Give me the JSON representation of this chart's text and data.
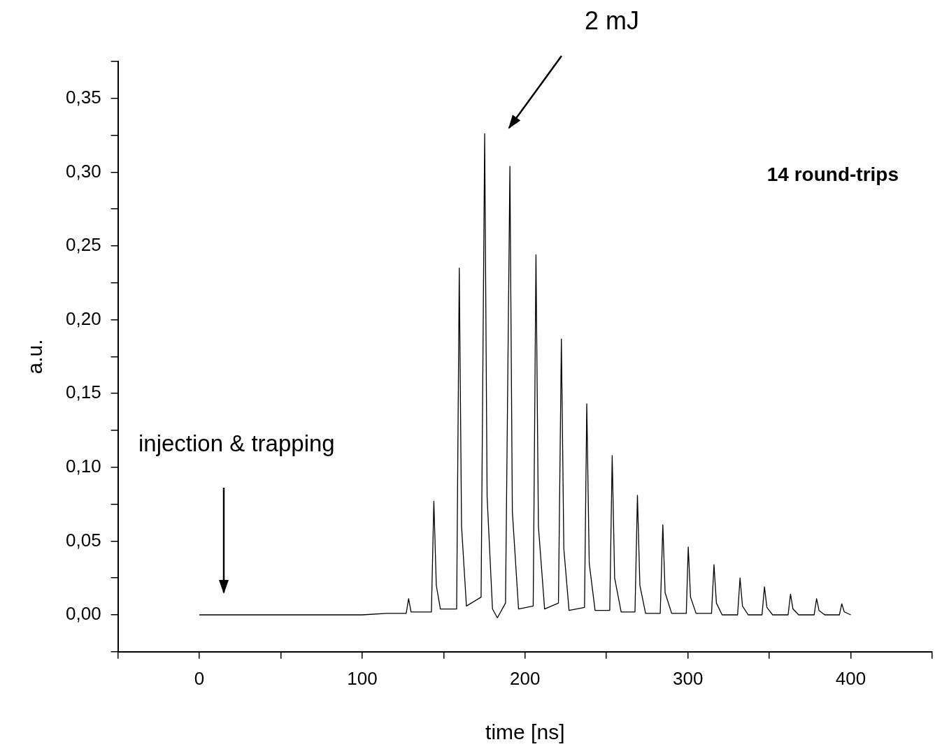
{
  "chart_data": {
    "type": "line",
    "xlabel": "time [ns]",
    "ylabel": "a.u.",
    "xlim": [
      -50,
      450
    ],
    "ylim": [
      -0.025,
      0.375
    ],
    "xticks": [
      {
        "value": -50,
        "label": null
      },
      0,
      {
        "value": 50,
        "label": null
      },
      100,
      {
        "value": 150,
        "label": null
      },
      200,
      {
        "value": 250,
        "label": null
      },
      300,
      {
        "value": 350,
        "label": null
      },
      400,
      {
        "value": 450,
        "label": null
      }
    ],
    "yticks": [
      {
        "value": -0.025,
        "label": null
      },
      {
        "value": 0,
        "label": "0,00"
      },
      {
        "value": 0.025,
        "label": null
      },
      {
        "value": 0.05,
        "label": "0,05"
      },
      {
        "value": 0.075,
        "label": null
      },
      {
        "value": 0.1,
        "label": "0,10"
      },
      {
        "value": 0.125,
        "label": null
      },
      {
        "value": 0.15,
        "label": "0,15"
      },
      {
        "value": 0.175,
        "label": null
      },
      {
        "value": 0.2,
        "label": "0,20"
      },
      {
        "value": 0.225,
        "label": null
      },
      {
        "value": 0.25,
        "label": "0,25"
      },
      {
        "value": 0.275,
        "label": null
      },
      {
        "value": 0.3,
        "label": "0,30"
      },
      {
        "value": 0.325,
        "label": null
      },
      {
        "value": 0.35,
        "label": "0,35"
      },
      {
        "value": 0.375,
        "label": null
      }
    ],
    "grid": false,
    "legend": false,
    "marker": "none",
    "line_style": "solid",
    "annotations": [
      "2 mJ",
      "injection & trapping",
      "14 round-trips"
    ],
    "series": [
      {
        "color": "#000000",
        "x": [
          0,
          50,
          100,
          115,
          127,
          128.5,
          130,
          142.5,
          144,
          145.5,
          148,
          158,
          159.6,
          161,
          164,
          173,
          175.2,
          176.7,
          180,
          183,
          188,
          190.7,
          192.2,
          196,
          205,
          206.7,
          208.2,
          212,
          220.5,
          222.3,
          223.8,
          227,
          236.5,
          237.9,
          239.4,
          243,
          252,
          253.5,
          255,
          259,
          267.5,
          269,
          270.5,
          274,
          283,
          284.6,
          286,
          290,
          299,
          300.2,
          301.6,
          305,
          314.5,
          316,
          317.5,
          321,
          330.5,
          332,
          333.5,
          337,
          345.5,
          347,
          348.5,
          352,
          361.5,
          363,
          364.5,
          368,
          377.5,
          379,
          380.5,
          384,
          393,
          394.5,
          396,
          400
        ],
        "values": [
          0,
          0,
          0,
          0.001,
          0.001,
          0.011,
          0.002,
          0.002,
          0.077,
          0.02,
          0.004,
          0.004,
          0.235,
          0.06,
          0.006,
          0.012,
          0.326,
          0.08,
          0.004,
          -0.002,
          0.008,
          0.304,
          0.07,
          0.004,
          0.006,
          0.244,
          0.06,
          0.004,
          0.008,
          0.187,
          0.045,
          0.003,
          0.005,
          0.143,
          0.035,
          0.003,
          0.003,
          0.108,
          0.025,
          0.002,
          0.002,
          0.081,
          0.02,
          0.001,
          0.001,
          0.061,
          0.015,
          0.001,
          0.001,
          0.046,
          0.012,
          0.001,
          0.001,
          0.034,
          0.008,
          0,
          0,
          0.025,
          0.006,
          0,
          0,
          0.019,
          0.005,
          0,
          0,
          0.014,
          0.004,
          0,
          0,
          0.011,
          0.003,
          0,
          0,
          0.0075,
          0.002,
          0
        ]
      }
    ]
  }
}
